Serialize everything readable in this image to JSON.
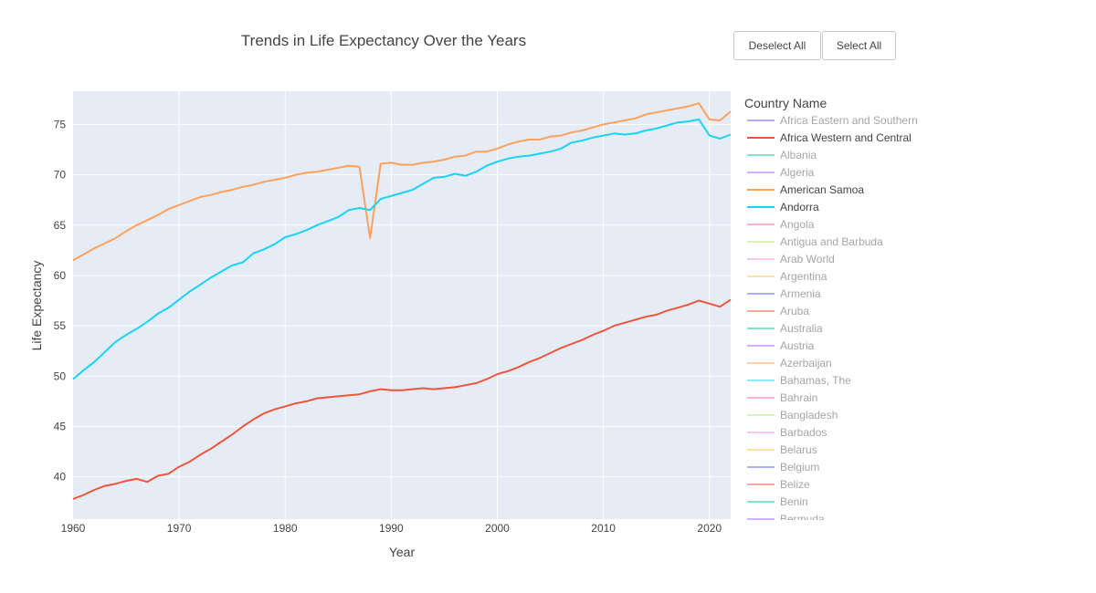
{
  "buttons": {
    "deselect_all": "Deselect All",
    "select_all": "Select All"
  },
  "chart_data": {
    "type": "line",
    "title": "Trends in Life Expectancy Over the Years",
    "xlabel": "Year",
    "ylabel": "Life Expectancy",
    "xlim": [
      1960,
      2022
    ],
    "ylim": [
      35.8,
      78.3
    ],
    "x_ticks": [
      1960,
      1970,
      1980,
      1990,
      2000,
      2010,
      2020
    ],
    "y_ticks": [
      40,
      45,
      50,
      55,
      60,
      65,
      70,
      75
    ],
    "grid": true,
    "legend_title": "Country Name",
    "legend_placement": "right",
    "x": [
      1960,
      1961,
      1962,
      1963,
      1964,
      1965,
      1966,
      1967,
      1968,
      1969,
      1970,
      1971,
      1972,
      1973,
      1974,
      1975,
      1976,
      1977,
      1978,
      1979,
      1980,
      1981,
      1982,
      1983,
      1984,
      1985,
      1986,
      1987,
      1988,
      1989,
      1990,
      1991,
      1992,
      1993,
      1994,
      1995,
      1996,
      1997,
      1998,
      1999,
      2000,
      2001,
      2002,
      2003,
      2004,
      2005,
      2006,
      2007,
      2008,
      2009,
      2010,
      2011,
      2012,
      2013,
      2014,
      2015,
      2016,
      2017,
      2018,
      2019,
      2020,
      2021,
      2022
    ],
    "series": [
      {
        "name": "Africa Eastern and Southern",
        "visible": false,
        "color": "#aab0fb"
      },
      {
        "name": "Africa Western and Central",
        "visible": true,
        "color": "#ef553b",
        "values": [
          37.8,
          38.2,
          38.7,
          39.1,
          39.3,
          39.6,
          39.8,
          39.5,
          40.1,
          40.3,
          41.0,
          41.5,
          42.2,
          42.8,
          43.5,
          44.2,
          45.0,
          45.7,
          46.3,
          46.7,
          47.0,
          47.3,
          47.5,
          47.8,
          47.9,
          48.0,
          48.1,
          48.2,
          48.5,
          48.7,
          48.6,
          48.6,
          48.7,
          48.8,
          48.7,
          48.8,
          48.9,
          49.1,
          49.3,
          49.7,
          50.2,
          50.5,
          50.9,
          51.4,
          51.8,
          52.3,
          52.8,
          53.2,
          53.6,
          54.1,
          54.5,
          55.0,
          55.3,
          55.6,
          55.9,
          56.1,
          56.5,
          56.8,
          57.1,
          57.5,
          57.2,
          56.9,
          57.6
        ]
      },
      {
        "name": "Albania",
        "visible": false,
        "color": "#7fe6cd"
      },
      {
        "name": "Algeria",
        "visible": false,
        "color": "#d5b0fc"
      },
      {
        "name": "American Samoa",
        "visible": true,
        "color": "#ffa15a",
        "values": [
          61.5,
          62.1,
          62.7,
          63.2,
          63.7,
          64.4,
          65.0,
          65.5,
          66.0,
          66.6,
          67.0,
          67.4,
          67.8,
          68.0,
          68.3,
          68.5,
          68.8,
          69.0,
          69.3,
          69.5,
          69.7,
          70.0,
          70.2,
          70.3,
          70.5,
          70.7,
          70.9,
          70.8,
          63.7,
          71.1,
          71.2,
          71.0,
          71.0,
          71.2,
          71.3,
          71.5,
          71.8,
          71.9,
          72.3,
          72.3,
          72.6,
          73.0,
          73.3,
          73.5,
          73.5,
          73.8,
          73.9,
          74.2,
          74.4,
          74.7,
          75.0,
          75.2,
          75.4,
          75.6,
          76.0,
          76.2,
          76.4,
          76.6,
          76.8,
          77.1,
          75.5,
          75.4,
          76.3
        ]
      },
      {
        "name": "Andorra",
        "visible": true,
        "color": "#19d3f3",
        "values": [
          49.7,
          50.6,
          51.4,
          52.4,
          53.4,
          54.1,
          54.7,
          55.4,
          56.2,
          56.8,
          57.6,
          58.4,
          59.1,
          59.8,
          60.4,
          61.0,
          61.3,
          62.2,
          62.6,
          63.1,
          63.8,
          64.1,
          64.5,
          65.0,
          65.4,
          65.8,
          66.5,
          66.7,
          66.5,
          67.6,
          67.9,
          68.2,
          68.5,
          69.1,
          69.7,
          69.8,
          70.1,
          69.9,
          70.3,
          70.9,
          71.3,
          71.6,
          71.8,
          71.9,
          72.1,
          72.3,
          72.6,
          73.2,
          73.4,
          73.7,
          73.9,
          74.1,
          74.0,
          74.1,
          74.4,
          74.6,
          74.9,
          75.2,
          75.3,
          75.5,
          73.9,
          73.6,
          74.0
        ]
      },
      {
        "name": "Angola",
        "visible": false,
        "color": "#ffb0cc"
      },
      {
        "name": "Antigua and Barbuda",
        "visible": false,
        "color": "#d9f2b5"
      },
      {
        "name": "Arab World",
        "visible": false,
        "color": "#fbc6f6"
      },
      {
        "name": "Argentina",
        "visible": false,
        "color": "#fee2a2"
      },
      {
        "name": "Armenia",
        "visible": false,
        "color": "#aab0fb"
      },
      {
        "name": "Aruba",
        "visible": false,
        "color": "#f6a99d"
      },
      {
        "name": "Australia",
        "visible": false,
        "color": "#7fe6cd"
      },
      {
        "name": "Austria",
        "visible": false,
        "color": "#d5b0fc"
      },
      {
        "name": "Azerbaijan",
        "visible": false,
        "color": "#ffd0ac"
      },
      {
        "name": "Bahamas, The",
        "visible": false,
        "color": "#8ce9f9"
      },
      {
        "name": "Bahrain",
        "visible": false,
        "color": "#ffb0cc"
      },
      {
        "name": "Bangladesh",
        "visible": false,
        "color": "#d9f2b5"
      },
      {
        "name": "Barbados",
        "visible": false,
        "color": "#fbc6f6"
      },
      {
        "name": "Belarus",
        "visible": false,
        "color": "#fee2a2"
      },
      {
        "name": "Belgium",
        "visible": false,
        "color": "#aab0fb"
      },
      {
        "name": "Belize",
        "visible": false,
        "color": "#f6a99d"
      },
      {
        "name": "Benin",
        "visible": false,
        "color": "#7fe6cd"
      },
      {
        "name": "Bermuda",
        "visible": false,
        "color": "#d5b0fc"
      }
    ]
  }
}
